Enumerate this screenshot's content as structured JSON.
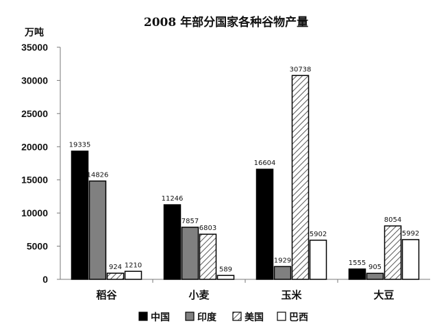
{
  "chart_data": {
    "type": "bar",
    "title": "2008 年部分国家各种谷物产量",
    "ylabel": "万吨",
    "xlabel": "",
    "ylim": [
      0,
      35000
    ],
    "yticks": [
      0,
      5000,
      10000,
      15000,
      20000,
      25000,
      30000,
      35000
    ],
    "grid": false,
    "legend_position": "bottom",
    "categories": [
      "稻谷",
      "小麦",
      "玉米",
      "大豆"
    ],
    "series": [
      {
        "name": "中国",
        "values": [
          19335,
          11246,
          16604,
          1555
        ],
        "fill": "solid-black",
        "color": "#000000"
      },
      {
        "name": "印度",
        "values": [
          14826,
          7857,
          1929,
          905
        ],
        "fill": "solid-gray",
        "color": "#808080"
      },
      {
        "name": "美国",
        "values": [
          924,
          6803,
          30738,
          8054
        ],
        "fill": "diagonal-hatch",
        "color": "#ffffff"
      },
      {
        "name": "巴西",
        "values": [
          1210,
          589,
          5902,
          5992
        ],
        "fill": "white",
        "color": "#ffffff"
      }
    ]
  }
}
